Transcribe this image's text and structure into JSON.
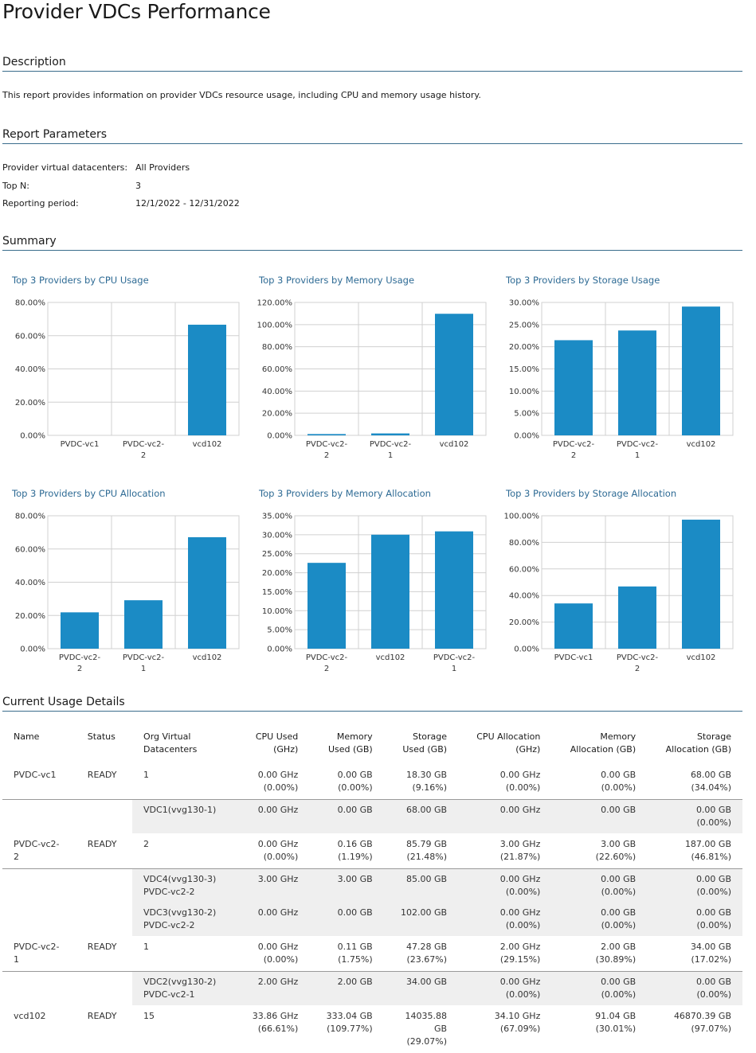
{
  "page": {
    "title": "Provider VDCs Performance",
    "sections": {
      "description": "Description",
      "parameters": "Report Parameters",
      "summary": "Summary",
      "details": "Current Usage Details"
    },
    "description_text": "This report provides information on provider VDCs resource usage, including CPU and memory usage history."
  },
  "parameters": [
    {
      "label": "Provider virtual datacenters:",
      "value": "All Providers"
    },
    {
      "label": "Top N:",
      "value": "3"
    },
    {
      "label": "Reporting period:",
      "value": "12/1/2022 - 12/31/2022"
    }
  ],
  "colors": {
    "bar": "#1b8bc5",
    "grid": "#d0d0d0",
    "title": "#2d6a94",
    "rule": "#3a6d8c"
  },
  "chart_data": [
    {
      "type": "bar",
      "title": "Top 3 Providers by CPU Usage",
      "categories": [
        [
          "PVDC-vc1"
        ],
        [
          "PVDC-vc2-",
          "2"
        ],
        [
          "vcd102"
        ]
      ],
      "values": [
        0,
        0,
        66.61
      ],
      "yticks": [
        "0.00%",
        "20.00%",
        "40.00%",
        "60.00%",
        "80.00%"
      ],
      "ylim": [
        0,
        80
      ]
    },
    {
      "type": "bar",
      "title": "Top 3 Providers by Memory Usage",
      "categories": [
        [
          "PVDC-vc2-",
          "2"
        ],
        [
          "PVDC-vc2-",
          "1"
        ],
        [
          "vcd102"
        ]
      ],
      "values": [
        1.19,
        1.75,
        109.77
      ],
      "yticks": [
        "0.00%",
        "20.00%",
        "40.00%",
        "60.00%",
        "80.00%",
        "100.00%",
        "120.00%"
      ],
      "ylim": [
        0,
        120
      ]
    },
    {
      "type": "bar",
      "title": "Top 3 Providers by Storage Usage",
      "categories": [
        [
          "PVDC-vc2-",
          "2"
        ],
        [
          "PVDC-vc2-",
          "1"
        ],
        [
          "vcd102"
        ]
      ],
      "values": [
        21.48,
        23.67,
        29.07
      ],
      "yticks": [
        "0.00%",
        "5.00%",
        "10.00%",
        "15.00%",
        "20.00%",
        "25.00%",
        "30.00%"
      ],
      "ylim": [
        0,
        30
      ]
    },
    {
      "type": "bar",
      "title": "Top 3 Providers by CPU Allocation",
      "categories": [
        [
          "PVDC-vc2-",
          "2"
        ],
        [
          "PVDC-vc2-",
          "1"
        ],
        [
          "vcd102"
        ]
      ],
      "values": [
        21.87,
        29.15,
        67.09
      ],
      "yticks": [
        "0.00%",
        "20.00%",
        "40.00%",
        "60.00%",
        "80.00%"
      ],
      "ylim": [
        0,
        80
      ]
    },
    {
      "type": "bar",
      "title": "Top 3 Providers by Memory Allocation",
      "categories": [
        [
          "PVDC-vc2-",
          "2"
        ],
        [
          "vcd102"
        ],
        [
          "PVDC-vc2-",
          "1"
        ]
      ],
      "values": [
        22.6,
        30.01,
        30.89
      ],
      "yticks": [
        "0.00%",
        "5.00%",
        "10.00%",
        "15.00%",
        "20.00%",
        "25.00%",
        "30.00%",
        "35.00%"
      ],
      "ylim": [
        0,
        35
      ]
    },
    {
      "type": "bar",
      "title": "Top 3 Providers by Storage Allocation",
      "categories": [
        [
          "PVDC-vc1"
        ],
        [
          "PVDC-vc2-",
          "2"
        ],
        [
          "vcd102"
        ]
      ],
      "values": [
        34.04,
        46.81,
        97.07
      ],
      "yticks": [
        "0.00%",
        "20.00%",
        "40.00%",
        "60.00%",
        "80.00%",
        "100.00%"
      ],
      "ylim": [
        0,
        100
      ]
    }
  ],
  "details": {
    "headers": [
      {
        "label": "Name",
        "align": "l"
      },
      {
        "label": "Status",
        "align": "l"
      },
      {
        "label": "Org Virtual\nDatacenters",
        "align": "l"
      },
      {
        "label": "CPU Used\n(GHz)",
        "align": "r"
      },
      {
        "label": "Memory\nUsed (GB)",
        "align": "r"
      },
      {
        "label": "Storage\nUsed (GB)",
        "align": "r"
      },
      {
        "label": "CPU Allocation\n(GHz)",
        "align": "r"
      },
      {
        "label": "Memory\nAllocation (GB)",
        "align": "r"
      },
      {
        "label": "Storage\nAllocation (GB)",
        "align": "r"
      }
    ],
    "rows": [
      {
        "kind": "main",
        "cells": [
          "PVDC-vc1",
          "READY",
          "1",
          "0.00 GHz\n(0.00%)",
          "0.00 GB\n(0.00%)",
          "18.30 GB\n(9.16%)",
          "0.00 GHz\n(0.00%)",
          "0.00 GB\n(0.00%)",
          "68.00 GB\n(34.04%)"
        ]
      },
      {
        "kind": "sub",
        "cells": [
          "VDC1(vvg130-1)",
          "0.00 GHz",
          "0.00 GB",
          "68.00 GB",
          "0.00 GHz",
          "0.00 GB",
          "0.00 GB\n(0.00%)"
        ]
      },
      {
        "kind": "main",
        "cells": [
          "PVDC-vc2-\n2",
          "READY",
          "2",
          "0.00 GHz\n(0.00%)",
          "0.16 GB\n(1.19%)",
          "85.79 GB\n(21.48%)",
          "3.00 GHz\n(21.87%)",
          "3.00 GB\n(22.60%)",
          "187.00 GB\n(46.81%)"
        ]
      },
      {
        "kind": "sub",
        "cells": [
          "VDC4(vvg130-3)\nPVDC-vc2-2",
          "3.00 GHz",
          "3.00 GB",
          "85.00 GB",
          "0.00 GHz\n(0.00%)",
          "0.00 GB\n(0.00%)",
          "0.00 GB\n(0.00%)"
        ]
      },
      {
        "kind": "sub2",
        "cells": [
          "VDC3(vvg130-2)\nPVDC-vc2-2",
          "0.00 GHz",
          "0.00 GB",
          "102.00 GB",
          "0.00 GHz\n(0.00%)",
          "0.00 GB\n(0.00%)",
          "0.00 GB\n(0.00%)"
        ]
      },
      {
        "kind": "main",
        "cells": [
          "PVDC-vc2-\n1",
          "READY",
          "1",
          "0.00 GHz\n(0.00%)",
          "0.11 GB\n(1.75%)",
          "47.28 GB\n(23.67%)",
          "2.00 GHz\n(29.15%)",
          "2.00 GB\n(30.89%)",
          "34.00 GB\n(17.02%)"
        ]
      },
      {
        "kind": "sub",
        "cells": [
          "VDC2(vvg130-2)\nPVDC-vc2-1",
          "2.00 GHz",
          "2.00 GB",
          "34.00 GB",
          "0.00 GHz\n(0.00%)",
          "0.00 GB\n(0.00%)",
          "0.00 GB\n(0.00%)"
        ]
      },
      {
        "kind": "main",
        "cells": [
          "vcd102",
          "READY",
          "15",
          "33.86 GHz\n(66.61%)",
          "333.04 GB\n(109.77%)",
          "14035.88\nGB\n(29.07%)",
          "34.10 GHz\n(67.09%)",
          "91.04 GB\n(30.01%)",
          "46870.39 GB\n(97.07%)"
        ]
      }
    ]
  }
}
